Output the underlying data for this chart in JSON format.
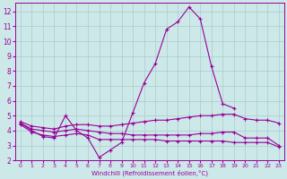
{
  "x": [
    0,
    1,
    2,
    3,
    4,
    5,
    6,
    7,
    8,
    9,
    10,
    11,
    12,
    13,
    14,
    15,
    16,
    17,
    18,
    19,
    20,
    21,
    22,
    23
  ],
  "line_peak": [
    4.5,
    4.0,
    3.6,
    3.5,
    5.0,
    4.0,
    3.5,
    2.2,
    2.7,
    3.2,
    5.2,
    7.2,
    8.5,
    10.8,
    11.3,
    12.3,
    11.5,
    8.3,
    5.8,
    5.5,
    null,
    null,
    null,
    null
  ],
  "line_top": [
    4.6,
    4.3,
    4.2,
    4.1,
    4.3,
    4.4,
    4.4,
    4.3,
    4.3,
    4.4,
    4.5,
    4.6,
    4.7,
    4.7,
    4.8,
    4.9,
    5.0,
    5.0,
    5.1,
    5.1,
    4.8,
    4.7,
    4.7,
    4.5
  ],
  "line_mid": [
    4.5,
    4.1,
    4.0,
    3.9,
    4.0,
    4.1,
    4.0,
    3.9,
    3.8,
    3.8,
    3.7,
    3.7,
    3.7,
    3.7,
    3.7,
    3.7,
    3.8,
    3.8,
    3.9,
    3.9,
    3.5,
    3.5,
    3.5,
    3.0
  ],
  "line_bot": [
    4.4,
    3.9,
    3.7,
    3.6,
    3.7,
    3.8,
    3.7,
    3.4,
    3.4,
    3.4,
    3.4,
    3.4,
    3.4,
    3.3,
    3.3,
    3.3,
    3.3,
    3.3,
    3.3,
    3.2,
    3.2,
    3.2,
    3.2,
    2.9
  ],
  "color": "#990099",
  "bg_color": "#cce8e8",
  "grid_color": "#aacccc",
  "xlabel": "Windchill (Refroidissement éolien,°C)",
  "ylim": [
    2,
    12.6
  ],
  "xlim": [
    -0.5,
    23.5
  ],
  "yticks": [
    2,
    3,
    4,
    5,
    6,
    7,
    8,
    9,
    10,
    11,
    12
  ],
  "xticks": [
    0,
    1,
    2,
    3,
    4,
    5,
    6,
    7,
    8,
    9,
    10,
    11,
    12,
    13,
    14,
    15,
    16,
    17,
    18,
    19,
    20,
    21,
    22,
    23
  ]
}
